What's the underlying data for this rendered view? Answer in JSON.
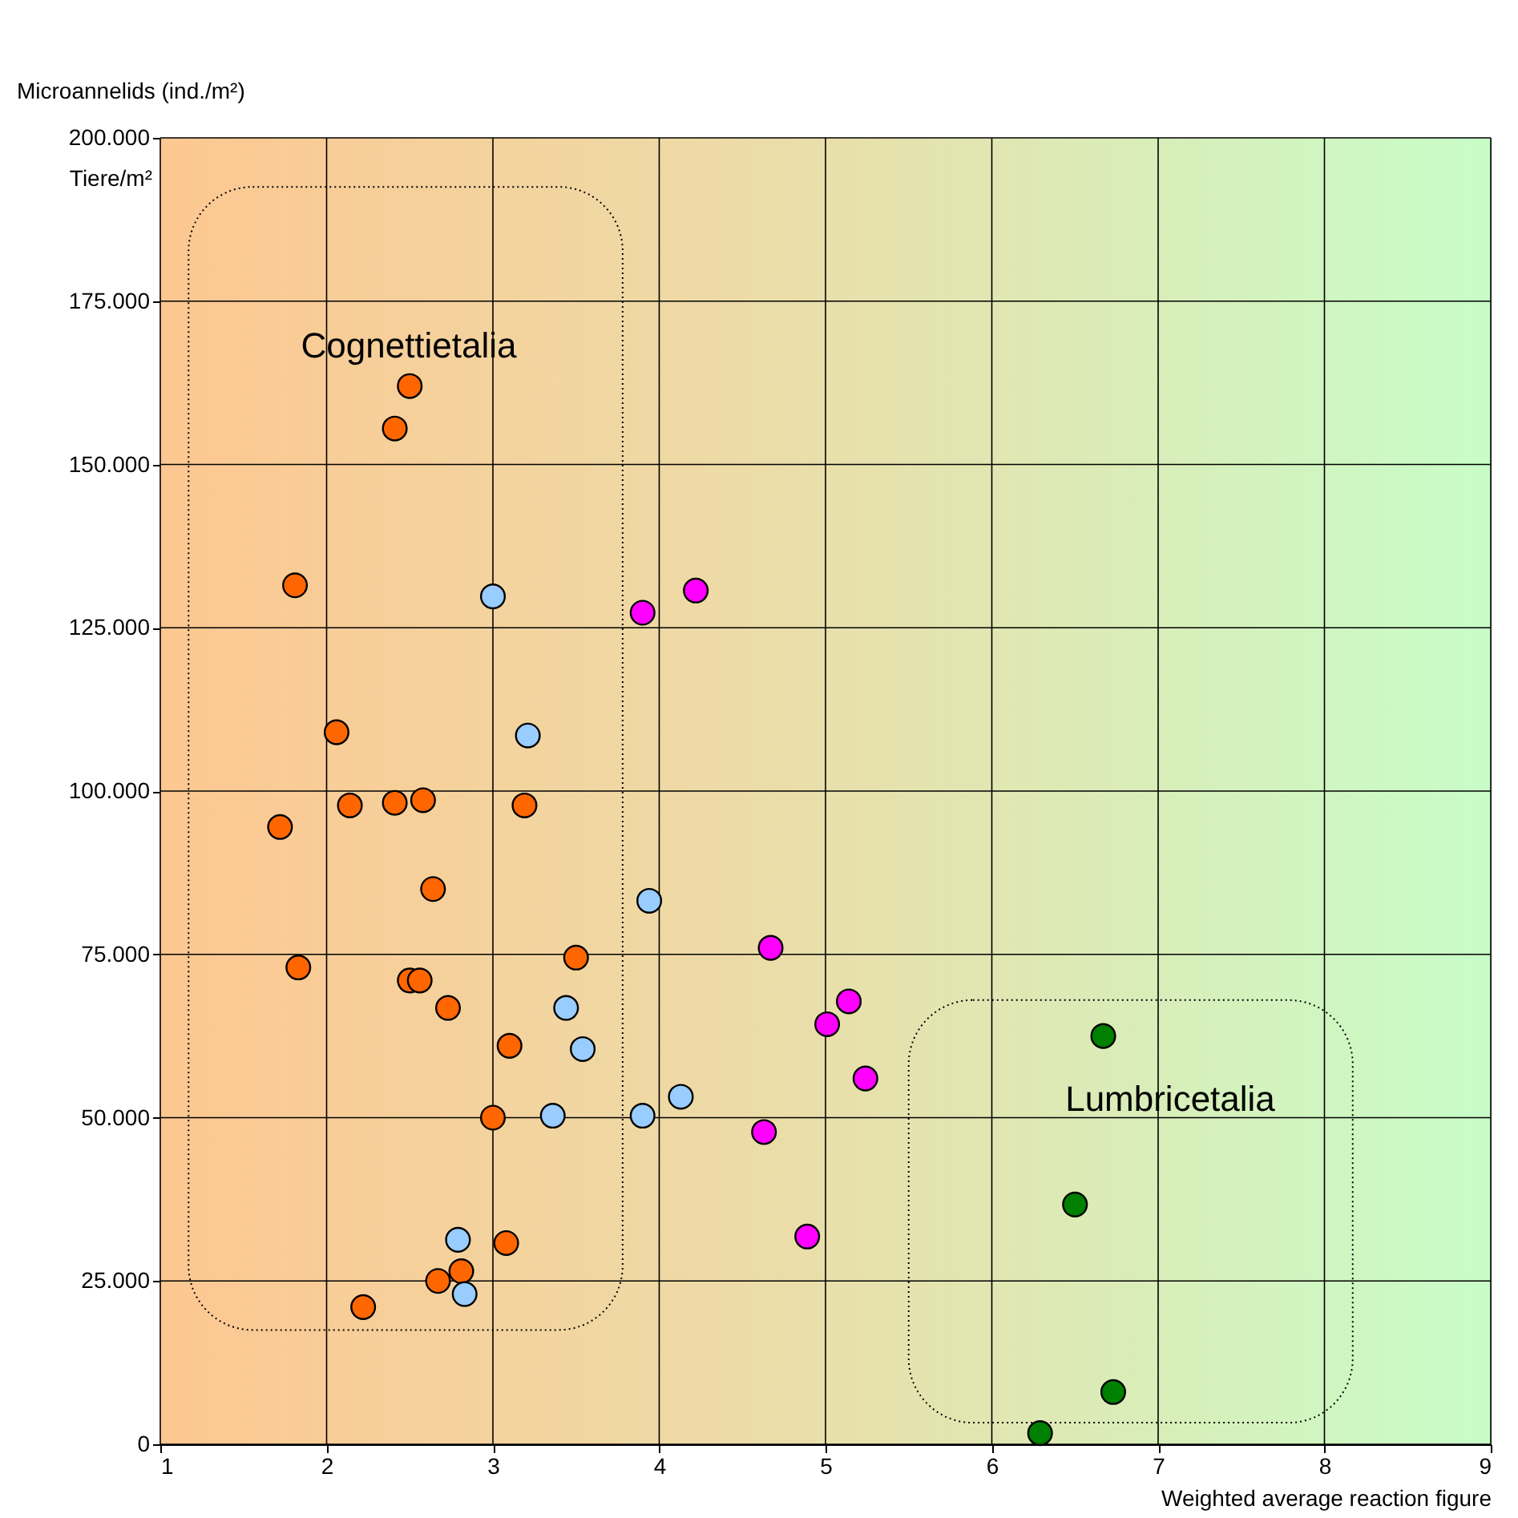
{
  "chart_data": {
    "type": "scatter",
    "xlabel": "Weighted average reaction figure",
    "ylabel": "Microannelids (ind./m²)",
    "xlim": [
      1,
      9
    ],
    "xticks": [
      1,
      2,
      3,
      4,
      5,
      6,
      7,
      8,
      9
    ],
    "ylim": [
      0,
      200000
    ],
    "yticks": [
      {
        "value": 0,
        "label": "0"
      },
      {
        "value": 25000,
        "label": "25.000"
      },
      {
        "value": 50000,
        "label": "50.000"
      },
      {
        "value": 75000,
        "label": "75.000"
      },
      {
        "value": 100000,
        "label": "100.000"
      },
      {
        "value": 125000,
        "label": "125.000"
      },
      {
        "value": 150000,
        "label": "150.000"
      },
      {
        "value": 175000,
        "label": "175.000"
      },
      {
        "value": 200000,
        "label": "200.000"
      }
    ],
    "grid": true,
    "marker": "circle",
    "annotations": [
      "Tiere/m²",
      "Cognettietalia",
      "Lumbricetalia"
    ],
    "series": [
      {
        "color": "#ff6600",
        "x": [
          2.5,
          2.41,
          1.81,
          2.06,
          2.14,
          1.72,
          2.41,
          2.58,
          3.19,
          2.64,
          1.83,
          2.5,
          2.56,
          2.73,
          3.5,
          3.1,
          3.0,
          3.08,
          2.81,
          2.67,
          2.22
        ],
        "values": [
          162000,
          155500,
          131500,
          109000,
          97800,
          94500,
          98200,
          98600,
          97800,
          85000,
          73000,
          71000,
          71000,
          66800,
          74500,
          61000,
          50000,
          30800,
          26500,
          25000,
          21000
        ]
      },
      {
        "color": "#99ccff",
        "x": [
          3.0,
          3.21,
          3.94,
          3.44,
          3.54,
          3.36,
          3.9,
          4.13,
          2.79,
          2.83
        ],
        "values": [
          129800,
          108500,
          83200,
          66800,
          60500,
          50300,
          50300,
          53200,
          31300,
          23000
        ]
      },
      {
        "color": "#ff00ff",
        "x": [
          3.9,
          4.22,
          4.67,
          5.14,
          5.01,
          5.24,
          4.63,
          4.89
        ],
        "values": [
          127300,
          130700,
          76000,
          67800,
          64300,
          56000,
          47800,
          31800
        ]
      },
      {
        "color": "#008000",
        "x": [
          6.67,
          6.5,
          6.73,
          6.29
        ],
        "values": [
          62500,
          36700,
          8000,
          1700
        ]
      }
    ]
  }
}
